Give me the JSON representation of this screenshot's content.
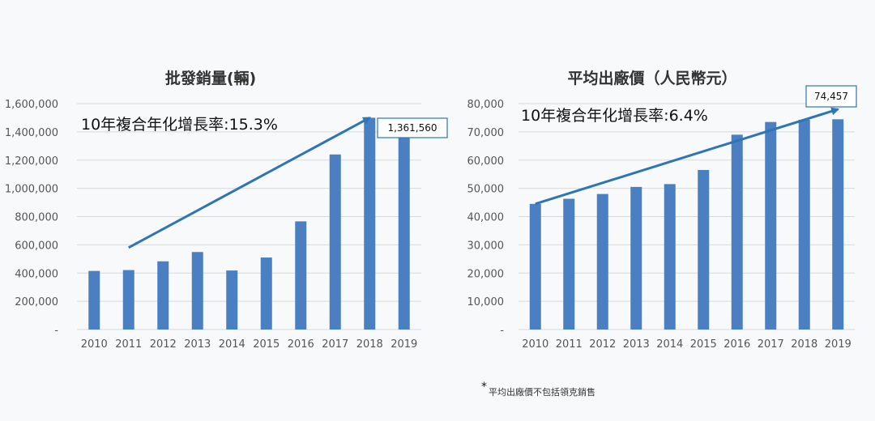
{
  "accent_color": "#4a7fc1",
  "arrow_color": "#2e75b6",
  "footnote": {
    "marker": "*",
    "text": "平均出廠價不包括領克銷售"
  },
  "chart_data": [
    {
      "type": "bar",
      "title": "批發銷量(輛)",
      "annotation": "10年複合年化增長率:15.3%",
      "callout": "1,361,560",
      "categories": [
        "2010",
        "2011",
        "2012",
        "2013",
        "2014",
        "2015",
        "2016",
        "2017",
        "2018",
        "2019"
      ],
      "values": [
        415000,
        421000,
        483000,
        549000,
        418000,
        510000,
        766000,
        1240000,
        1500000,
        1361560
      ],
      "ylim": [
        0,
        1600000
      ],
      "yticks": [
        "-",
        "200,000",
        "400,000",
        "600,000",
        "800,000",
        "1,000,000",
        "1,200,000",
        "1,400,000",
        "1,600,000"
      ],
      "xlabel": "",
      "ylabel": "",
      "grid": true,
      "trend_arrow": {
        "from": [
          "2011",
          580000
        ],
        "to": [
          "2018",
          1500000
        ]
      }
    },
    {
      "type": "bar",
      "title": "平均出廠價（人民幣元）",
      "annotation": "10年複合年化增長率:6.4%",
      "callout": "74,457",
      "categories": [
        "2010",
        "2011",
        "2012",
        "2013",
        "2014",
        "2015",
        "2016",
        "2017",
        "2018",
        "2019"
      ],
      "values": [
        44500,
        46300,
        48000,
        50500,
        51500,
        56500,
        69000,
        73500,
        74300,
        74457
      ],
      "ylim": [
        0,
        80000
      ],
      "yticks": [
        "-",
        "10,000",
        "20,000",
        "30,000",
        "40,000",
        "50,000",
        "60,000",
        "70,000",
        "80,000"
      ],
      "xlabel": "",
      "ylabel": "",
      "grid": true,
      "trend_arrow": {
        "from": [
          "2010",
          44500
        ],
        "to": [
          "2019",
          78000
        ]
      }
    }
  ]
}
